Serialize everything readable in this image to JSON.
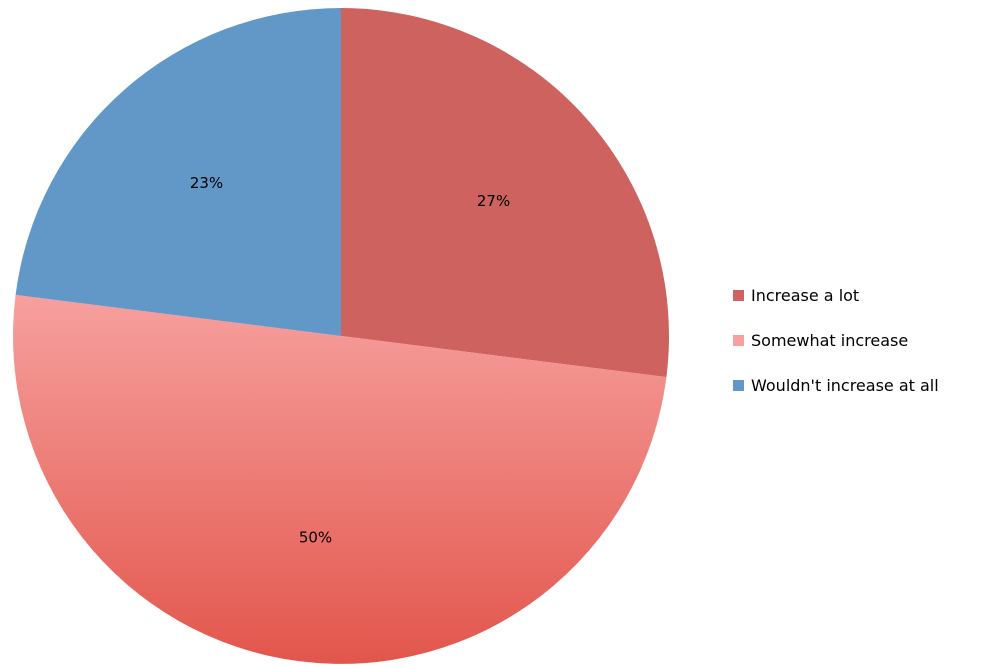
{
  "chart_data": {
    "type": "pie",
    "start": "12 o'clock",
    "direction": "clockwise",
    "slices": [
      {
        "name": "Increase a lot",
        "value": 27,
        "label": "27%",
        "color": "#cd625f",
        "color_end": "#cd625f"
      },
      {
        "name": "Somewhat increase",
        "value": 50,
        "label": "50%",
        "color": "#f7a09e",
        "color_end": "#e2564c"
      },
      {
        "name": "Wouldn't increase at all",
        "value": 23,
        "label": "23%",
        "color": "#6198c8",
        "color_end": "#6198c8"
      }
    ],
    "legend_position": "right"
  }
}
